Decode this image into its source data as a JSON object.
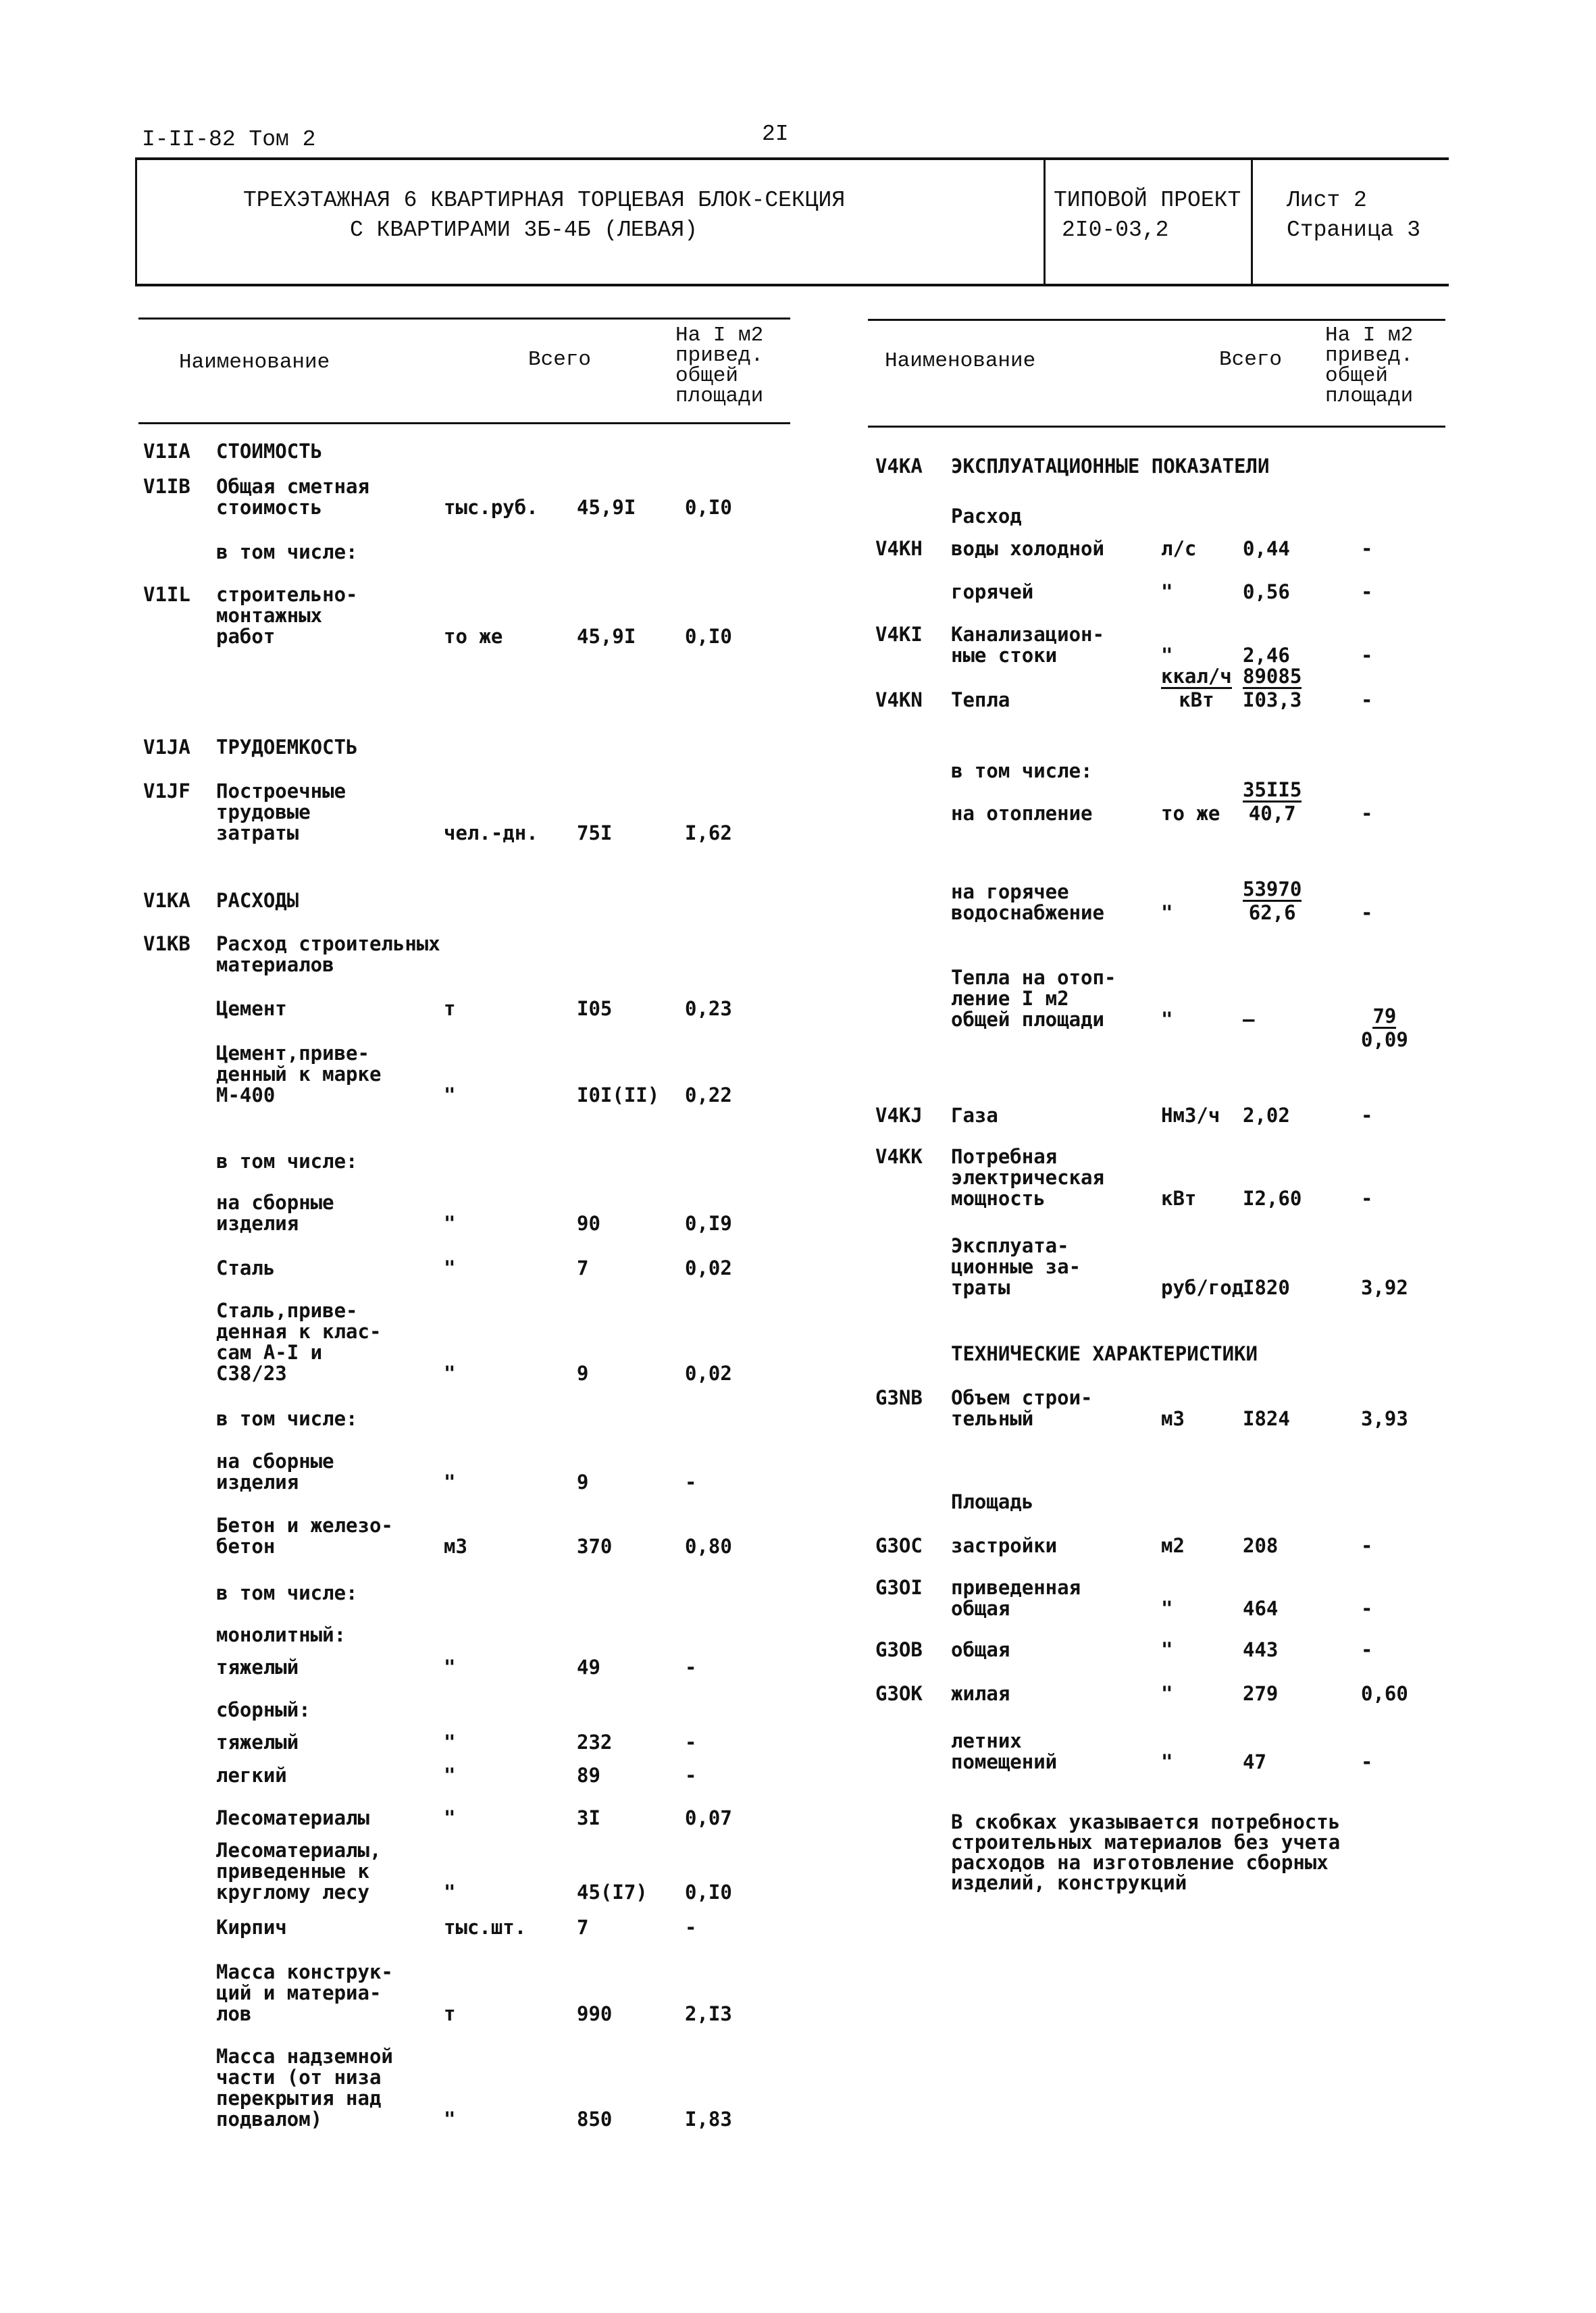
{
  "header": {
    "series": "I-II-82 Том 2",
    "page_number": "2I",
    "title_line1": "ТРЕХЭТАЖНАЯ 6 КВАРТИРНАЯ ТОРЦЕВАЯ БЛОК-СЕКЦИЯ",
    "title_line2": "С КВАРТИРАМИ 3Б-4Б (ЛЕВАЯ)",
    "project_label": "ТИПОВОЙ ПРОЕКТ",
    "project_number": "2I0-03,2",
    "sheet": "Лист 2",
    "page": "Страница 3"
  },
  "columns": {
    "name": "Наименование",
    "total": "Всего",
    "per_m2": "На I м2\nпривед.\nобщей\nплощади"
  },
  "left_rows": [
    {
      "code": "V1IA",
      "name": "СТОИМОСТЬ"
    },
    {
      "code": "V1IB",
      "name": "Общая сметная\nстоимость",
      "unit": "тыс.руб.",
      "total": "45,9I",
      "per": "0,I0"
    },
    {
      "name": "в том числе:"
    },
    {
      "code": "V1IL",
      "name": "строительно-\nмонтажных\nработ",
      "unit": "то же",
      "total": "45,9I",
      "per": "0,I0"
    },
    {
      "code": "V1JA",
      "name": "ТРУДОЕМКОСТЬ"
    },
    {
      "code": "V1JF",
      "name": "Построечные\nтрудовые\nзатраты",
      "unit": "чел.-дн.",
      "total": "75I",
      "per": "I,62"
    },
    {
      "code": "V1KA",
      "name": "РАСХОДЫ"
    },
    {
      "code": "V1KB",
      "name": "Расход строительных\nматериалов"
    },
    {
      "name": "Цемент",
      "unit": "т",
      "total": "I05",
      "per": "0,23"
    },
    {
      "name": "Цемент,приве-\nденный к марке\nМ-400",
      "unit": "\"",
      "total": "I0I(II)",
      "per": "0,22"
    },
    {
      "name": "в том числе:"
    },
    {
      "name": "на сборные\nизделия",
      "unit": "\"",
      "total": "90",
      "per": "0,I9"
    },
    {
      "name": "Сталь",
      "unit": "\"",
      "total": "7",
      "per": "0,02"
    },
    {
      "name": "Сталь,приве-\nденная к клас-\nсам А-I и\nС38/23",
      "unit": "\"",
      "total": "9",
      "per": "0,02"
    },
    {
      "name": "в том числе:"
    },
    {
      "name": "на сборные\nизделия",
      "unit": "\"",
      "total": "9",
      "per": "-"
    },
    {
      "name": "Бетон и железо-\nбетон",
      "unit": "м3",
      "total": "370",
      "per": "0,80"
    },
    {
      "name": "в том числе:"
    },
    {
      "name": "монолитный:"
    },
    {
      "name": "тяжелый",
      "unit": "\"",
      "total": "49",
      "per": "-"
    },
    {
      "name": "сборный:"
    },
    {
      "name": "тяжелый",
      "unit": "\"",
      "total": "232",
      "per": "-"
    },
    {
      "name": "легкий",
      "unit": "\"",
      "total": "89",
      "per": "-"
    },
    {
      "name": "Лесоматериалы",
      "unit": "\"",
      "total": "3I",
      "per": "0,07"
    },
    {
      "name": "Лесоматериалы,\nприведенные к\nкруглому лесу",
      "unit": "\"",
      "total": "45(I7)",
      "per": "0,I0"
    },
    {
      "name": "Кирпич",
      "unit": "тыс.шт.",
      "total": "7",
      "per": "-"
    },
    {
      "name": "Масса конструк-\nций и материа-\nлов",
      "unit": "т",
      "total": "990",
      "per": "2,I3"
    },
    {
      "name": "Масса надземной\nчасти (от низа\nперекрытия над\nподвалом)",
      "unit": "\"",
      "total": "850",
      "per": "I,83"
    }
  ],
  "right_rows": [
    {
      "code": "V4KA",
      "name": "ЭКСПЛУАТАЦИОННЫЕ ПОКАЗАТЕЛИ"
    },
    {
      "name": "Расход"
    },
    {
      "code": "V4KH",
      "name": "воды холодной",
      "unit": "л/с",
      "total": "0,44",
      "per": "-"
    },
    {
      "name": "горячей",
      "unit": "\"",
      "total": "0,56",
      "per": "-"
    },
    {
      "code": "V4KI",
      "name": "Канализацион-\nные стоки",
      "unit": "\"",
      "total": "2,46",
      "per": "-"
    },
    {
      "code": "V4KN",
      "name": "Тепла",
      "unit_frac": {
        "num": "ккал/ч",
        "den": "кВт"
      },
      "total_frac": {
        "num": "89085",
        "den": "I03,3"
      },
      "per": "-"
    },
    {
      "name": "в том числе:"
    },
    {
      "name": "на отопление",
      "unit": "то же",
      "total_frac": {
        "num": "35II5",
        "den": "40,7"
      },
      "per": "-"
    },
    {
      "name": "на горячее\nводоснабжение",
      "unit": "\"",
      "total_frac": {
        "num": "53970",
        "den": "62,6"
      },
      "per": "-"
    },
    {
      "name": "Тепла на отоп-\nление I м2\nобщей площади",
      "unit": "\"",
      "total": "–",
      "per_frac": {
        "num": "79",
        "den": "0,09"
      }
    },
    {
      "code": "V4KJ",
      "name": "Газа",
      "unit": "Нм3/ч",
      "total": "2,02",
      "per": "-"
    },
    {
      "code": "V4KK",
      "name": "Потребная\nэлектрическая\nмощность",
      "unit": "кВт",
      "total": "I2,60",
      "per": "-"
    },
    {
      "name": "Эксплуата-\nционные за-\nтраты",
      "unit": "руб/год",
      "total": "I820",
      "per": "3,92"
    },
    {
      "name": "ТЕХНИЧЕСКИЕ ХАРАКТЕРИСТИКИ"
    },
    {
      "code": "G3NB",
      "name": "Объем строи-\nтельный",
      "unit": "м3",
      "total": "I824",
      "per": "3,93"
    },
    {
      "name": "Площадь"
    },
    {
      "code": "G3OC",
      "name": "застройки",
      "unit": "м2",
      "total": "208",
      "per": "-"
    },
    {
      "code": "G3OI",
      "name": "приведенная\nобщая",
      "unit": "\"",
      "total": "464",
      "per": "-"
    },
    {
      "code": "G3OB",
      "name": "общая",
      "unit": "\"",
      "total": "443",
      "per": "-"
    },
    {
      "code": "G3OK",
      "name": "жилая",
      "unit": "\"",
      "total": "279",
      "per": "0,60"
    },
    {
      "name": "летних\nпомещений",
      "unit": "\"",
      "total": "47",
      "per": "-"
    }
  ],
  "note": "В скобках указывается потребность\nстроительных материалов без учета\nрасходов на изготовление сборных\nизделий, конструкций"
}
